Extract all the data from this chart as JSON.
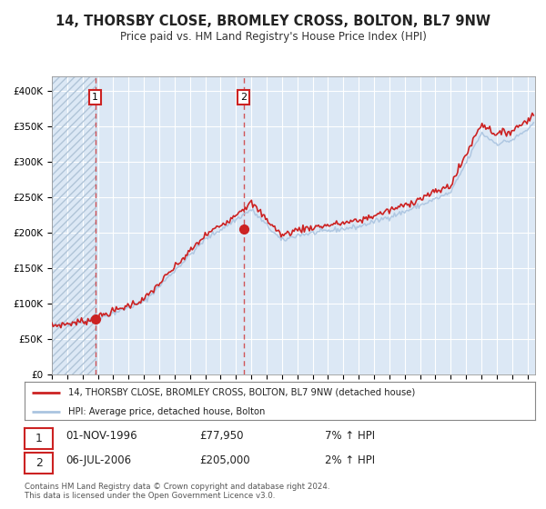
{
  "title_line1": "14, THORSBY CLOSE, BROMLEY CROSS, BOLTON, BL7 9NW",
  "title_line2": "Price paid vs. HM Land Registry's House Price Index (HPI)",
  "legend_label1": "14, THORSBY CLOSE, BROMLEY CROSS, BOLTON, BL7 9NW (detached house)",
  "legend_label2": "HPI: Average price, detached house, Bolton",
  "annotation1_date": "01-NOV-1996",
  "annotation1_price": "£77,950",
  "annotation1_hpi": "7% ↑ HPI",
  "annotation2_date": "06-JUL-2006",
  "annotation2_price": "£205,000",
  "annotation2_hpi": "2% ↑ HPI",
  "footnote": "Contains HM Land Registry data © Crown copyright and database right 2024.\nThis data is licensed under the Open Government Licence v3.0.",
  "sale1_year": 1996.83,
  "sale1_value": 77950,
  "sale2_year": 2006.5,
  "sale2_value": 205000,
  "hpi_color": "#aac4e0",
  "price_color": "#cc2222",
  "marker_color": "#cc2222",
  "plot_bg_color": "#dce8f5",
  "hatch_color": "#c8d8e8",
  "grid_color": "#ffffff",
  "ylim_min": 0,
  "ylim_max": 420000,
  "xlim_min": 1994.0,
  "xlim_max": 2025.5
}
